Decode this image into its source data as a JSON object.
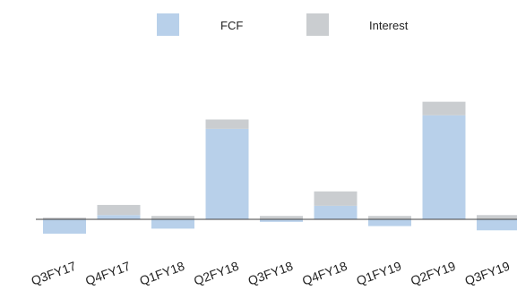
{
  "chart_data": {
    "type": "bar",
    "stacked": true,
    "categories": [
      "Q3FY17",
      "Q4FY17",
      "Q1FY18",
      "Q2FY18",
      "Q3FY18",
      "Q4FY18",
      "Q1FY19",
      "Q2FY19",
      "Q3FY19"
    ],
    "series": [
      {
        "name": "FCF",
        "color": "#b8d0ea",
        "values": [
          -17,
          5,
          -11,
          107,
          -3,
          16,
          -8,
          123,
          -13
        ]
      },
      {
        "name": "Interest",
        "color": "#cacdd0",
        "values": [
          2,
          12,
          4,
          11,
          4,
          17,
          4,
          16,
          5
        ]
      }
    ],
    "legend": {
      "position": "top-center"
    },
    "ylim": [
      -25,
      140
    ],
    "grid": false,
    "tick_label_rotation": -20
  }
}
